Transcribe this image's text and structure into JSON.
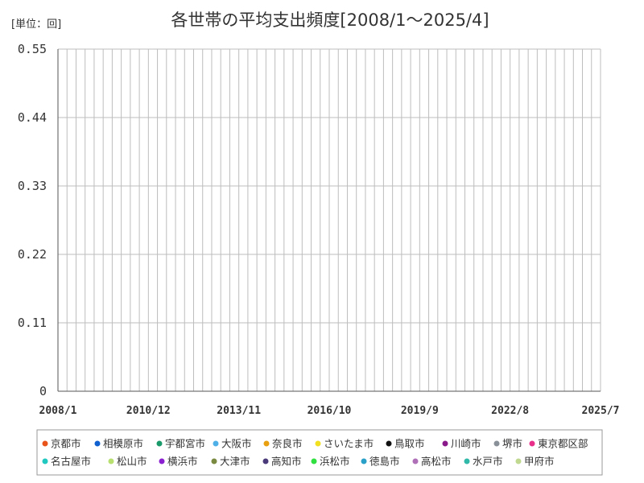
{
  "chart_data": {
    "type": "line",
    "title": "各世帯の平均支出頻度[2008/1～2025/4]",
    "unit_label": "[単位：回]",
    "x_start": "2008-01",
    "x_end": "2025-07",
    "x_ticks": [
      "2008/1",
      "2010/12",
      "2013/11",
      "2016/10",
      "2019/9",
      "2022/8",
      "2025/7"
    ],
    "y_ticks": [
      "0",
      "0.11",
      "0.22",
      "0.33",
      "0.44",
      "0.55"
    ],
    "ylim": [
      0,
      0.55
    ],
    "grid": true,
    "legend_position": "bottom",
    "series": [
      {
        "name": "京都市",
        "color": "#e8541a",
        "values": []
      },
      {
        "name": "相模原市",
        "color": "#1060d0",
        "values": []
      },
      {
        "name": "宇都宮市",
        "color": "#1a9a6a",
        "values": []
      },
      {
        "name": "大阪市",
        "color": "#4fb0e8",
        "values": []
      },
      {
        "name": "奈良市",
        "color": "#e8a010",
        "values": []
      },
      {
        "name": "さいたま市",
        "color": "#f0e020",
        "values": []
      },
      {
        "name": "鳥取市",
        "color": "#111111",
        "values": []
      },
      {
        "name": "川崎市",
        "color": "#8a1a8a",
        "values": []
      },
      {
        "name": "堺市",
        "color": "#8a9098",
        "values": []
      },
      {
        "name": "東京都区部",
        "color": "#e8308a",
        "values": []
      },
      {
        "name": "名古屋市",
        "color": "#20c8c0",
        "values": []
      },
      {
        "name": "松山市",
        "color": "#b8e070",
        "values": []
      },
      {
        "name": "横浜市",
        "color": "#8a20d0",
        "values": []
      },
      {
        "name": "大津市",
        "color": "#7a8a40",
        "values": []
      },
      {
        "name": "高知市",
        "color": "#4a3a7a",
        "values": []
      },
      {
        "name": "浜松市",
        "color": "#30e040",
        "values": []
      },
      {
        "name": "徳島市",
        "color": "#2aa0c8",
        "values": []
      },
      {
        "name": "高松市",
        "color": "#b070b8",
        "values": []
      },
      {
        "name": "水戸市",
        "color": "#30b8a8",
        "values": []
      },
      {
        "name": "甲府市",
        "color": "#c0d890",
        "values": []
      }
    ]
  }
}
